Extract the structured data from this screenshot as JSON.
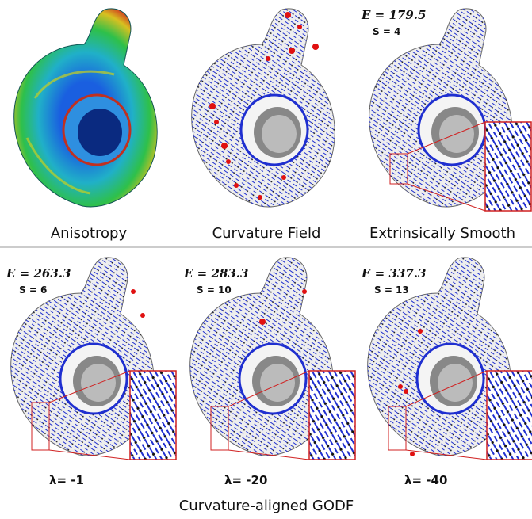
{
  "top_row": [
    {
      "caption": "Anisotropy"
    },
    {
      "caption": "Curvature Field"
    },
    {
      "caption": "Extrinsically Smooth",
      "energy": "E = 179.5",
      "samples": "S = 4"
    }
  ],
  "bottom_row": [
    {
      "energy": "E = 263.3",
      "samples": "S = 6",
      "lambda": "λ= -1"
    },
    {
      "energy": "E = 283.3",
      "samples": "S = 10",
      "lambda": "λ= -20"
    },
    {
      "energy": "E = 337.3",
      "samples": "S = 13",
      "lambda": "λ= -40"
    }
  ],
  "bottom_caption": "Curvature-aligned GODF"
}
